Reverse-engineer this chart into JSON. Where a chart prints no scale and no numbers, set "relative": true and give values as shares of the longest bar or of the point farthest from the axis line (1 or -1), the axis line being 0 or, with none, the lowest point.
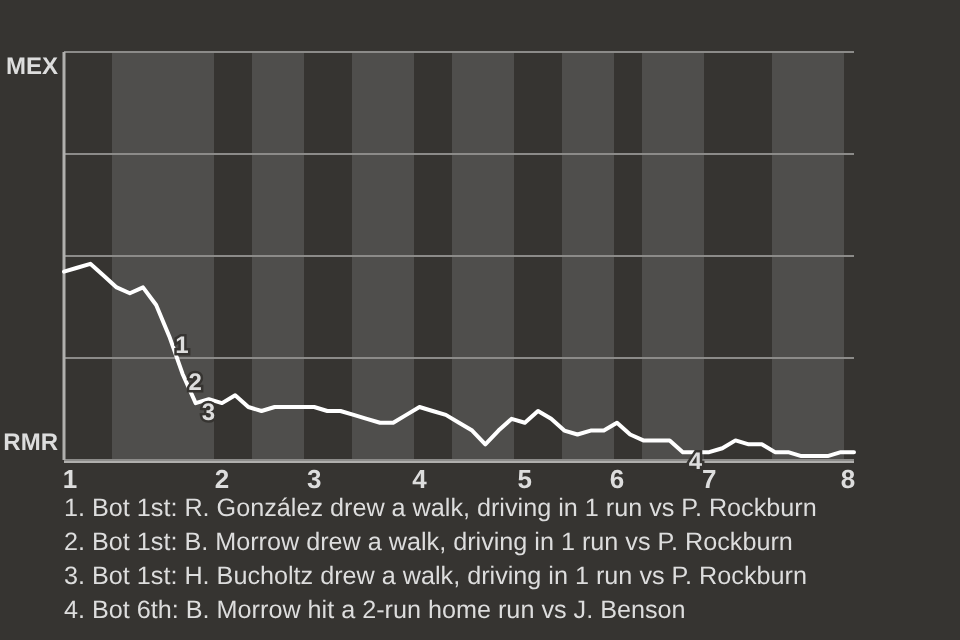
{
  "chart_data": {
    "type": "line",
    "relative": true,
    "categories": [
      "1",
      null,
      null,
      null,
      null,
      null,
      null,
      null,
      null,
      null,
      null,
      null,
      "2",
      null,
      null,
      null,
      null,
      null,
      null,
      "3",
      null,
      null,
      null,
      null,
      null,
      null,
      null,
      "4",
      null,
      null,
      null,
      null,
      null,
      null,
      null,
      "5",
      null,
      null,
      null,
      null,
      null,
      null,
      "6",
      null,
      null,
      null,
      null,
      null,
      null,
      "7",
      null,
      null,
      null,
      null,
      null,
      null,
      null,
      null,
      null,
      null,
      "8"
    ],
    "series": [
      {
        "color": "#ffffff",
        "values": [
          0.96,
          0.98,
          1,
          0.94,
          0.88,
          0.85,
          0.88,
          0.79,
          0.63,
          0.44,
          0.29,
          0.31,
          0.29,
          0.33,
          0.27,
          0.25,
          0.27,
          0.27,
          0.27,
          0.27,
          0.25,
          0.25,
          0.23,
          0.21,
          0.19,
          0.19,
          0.23,
          0.27,
          0.25,
          0.23,
          0.19,
          0.15,
          0.08,
          0.15,
          0.21,
          0.19,
          0.25,
          0.21,
          0.15,
          0.13,
          0.15,
          0.15,
          0.19,
          0.13,
          0.1,
          0.1,
          0.1,
          0.04,
          0.04,
          0.04,
          0.06,
          0.1,
          0.08,
          0.08,
          0.04,
          0.04,
          0.02,
          0.02,
          0.02,
          0.04,
          0.04
        ]
      }
    ],
    "marker": "none",
    "line_style": "solid",
    "ref_lines": [
      {
        "axis": "y",
        "value": 0,
        "label": "RMR"
      },
      {
        "axis": "y",
        "value": 0.52,
        "label": null
      },
      {
        "axis": "y",
        "value": 1.04,
        "label": null
      },
      {
        "axis": "y",
        "value": 1.56,
        "label": null
      },
      {
        "axis": "y",
        "value": 2.08,
        "label": "MEX"
      }
    ],
    "annotations": [
      {
        "text": "1",
        "y": 0.63
      },
      {
        "text": "2",
        "y": 0.44
      },
      {
        "text": "3",
        "y": 0.29
      },
      {
        "text": "4",
        "y": 0.04
      },
      "1. Bot 1st: R. González drew a walk, driving in 1 run vs P. Rockburn",
      "2. Bot 1st: B. Morrow drew a walk, driving in 1 run vs P. Rockburn",
      "3. Bot 1st: H. Bucholtz drew a walk, driving in 1 run vs P. Rockburn",
      "4. Bot 6th: B. Morrow hit a 2-run home run vs J. Benson"
    ]
  }
}
